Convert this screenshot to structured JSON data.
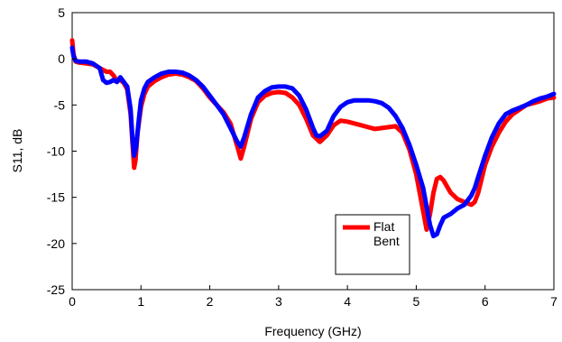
{
  "chart_data": {
    "type": "line",
    "xlabel": "Frequency (GHz)",
    "ylabel": "S11, dB",
    "xlim": [
      0,
      7
    ],
    "ylim": [
      -25,
      5
    ],
    "xticks": [
      "0",
      "1",
      "2",
      "3",
      "4",
      "5",
      "6",
      "7"
    ],
    "yticks": [
      "5",
      "0",
      "-5",
      "-10",
      "-15",
      "-20",
      "-25"
    ],
    "grid": false,
    "legend_position": "lower-right inside plot",
    "series": [
      {
        "name": "Flat",
        "color": "#ff0000",
        "points": [
          [
            0.0,
            2.0
          ],
          [
            0.02,
            0.5
          ],
          [
            0.05,
            -0.3
          ],
          [
            0.1,
            -0.4
          ],
          [
            0.2,
            -0.5
          ],
          [
            0.3,
            -0.6
          ],
          [
            0.4,
            -1.0
          ],
          [
            0.5,
            -1.4
          ],
          [
            0.55,
            -1.4
          ],
          [
            0.6,
            -1.8
          ],
          [
            0.65,
            -2.4
          ],
          [
            0.7,
            -2.3
          ],
          [
            0.75,
            -2.6
          ],
          [
            0.8,
            -3.3
          ],
          [
            0.85,
            -6.0
          ],
          [
            0.88,
            -9.5
          ],
          [
            0.9,
            -11.8
          ],
          [
            0.92,
            -11.0
          ],
          [
            0.95,
            -8.0
          ],
          [
            1.0,
            -5.2
          ],
          [
            1.05,
            -3.8
          ],
          [
            1.1,
            -3.0
          ],
          [
            1.2,
            -2.4
          ],
          [
            1.3,
            -2.0
          ],
          [
            1.4,
            -1.7
          ],
          [
            1.5,
            -1.6
          ],
          [
            1.6,
            -1.7
          ],
          [
            1.7,
            -2.0
          ],
          [
            1.8,
            -2.4
          ],
          [
            1.9,
            -3.2
          ],
          [
            2.0,
            -4.2
          ],
          [
            2.1,
            -5.0
          ],
          [
            2.2,
            -5.8
          ],
          [
            2.3,
            -7.0
          ],
          [
            2.4,
            -9.5
          ],
          [
            2.45,
            -10.8
          ],
          [
            2.5,
            -9.5
          ],
          [
            2.6,
            -6.5
          ],
          [
            2.7,
            -4.7
          ],
          [
            2.8,
            -4.0
          ],
          [
            2.9,
            -3.7
          ],
          [
            3.0,
            -3.6
          ],
          [
            3.1,
            -3.7
          ],
          [
            3.2,
            -4.2
          ],
          [
            3.3,
            -5.0
          ],
          [
            3.4,
            -6.5
          ],
          [
            3.5,
            -8.3
          ],
          [
            3.6,
            -9.0
          ],
          [
            3.7,
            -8.3
          ],
          [
            3.8,
            -7.2
          ],
          [
            3.9,
            -6.7
          ],
          [
            4.0,
            -6.8
          ],
          [
            4.1,
            -7.0
          ],
          [
            4.2,
            -7.2
          ],
          [
            4.3,
            -7.4
          ],
          [
            4.4,
            -7.6
          ],
          [
            4.5,
            -7.5
          ],
          [
            4.6,
            -7.4
          ],
          [
            4.7,
            -7.3
          ],
          [
            4.8,
            -8.0
          ],
          [
            4.9,
            -9.8
          ],
          [
            5.0,
            -12.5
          ],
          [
            5.1,
            -16.5
          ],
          [
            5.15,
            -18.5
          ],
          [
            5.2,
            -16.8
          ],
          [
            5.25,
            -14.5
          ],
          [
            5.3,
            -13.0
          ],
          [
            5.35,
            -12.8
          ],
          [
            5.4,
            -13.2
          ],
          [
            5.5,
            -14.5
          ],
          [
            5.6,
            -15.2
          ],
          [
            5.7,
            -15.5
          ],
          [
            5.8,
            -15.8
          ],
          [
            5.85,
            -15.5
          ],
          [
            5.9,
            -14.5
          ],
          [
            6.0,
            -11.5
          ],
          [
            6.1,
            -9.5
          ],
          [
            6.2,
            -8.0
          ],
          [
            6.3,
            -6.8
          ],
          [
            6.4,
            -6.0
          ],
          [
            6.5,
            -5.5
          ],
          [
            6.6,
            -5.0
          ],
          [
            6.7,
            -4.8
          ],
          [
            6.8,
            -4.6
          ],
          [
            6.9,
            -4.3
          ],
          [
            7.0,
            -4.2
          ]
        ]
      },
      {
        "name": "Bent",
        "color": "#0000ff",
        "points": [
          [
            0.0,
            1.2
          ],
          [
            0.02,
            0.3
          ],
          [
            0.05,
            -0.2
          ],
          [
            0.1,
            -0.3
          ],
          [
            0.2,
            -0.3
          ],
          [
            0.3,
            -0.5
          ],
          [
            0.4,
            -1.0
          ],
          [
            0.45,
            -2.3
          ],
          [
            0.5,
            -2.6
          ],
          [
            0.55,
            -2.5
          ],
          [
            0.6,
            -2.3
          ],
          [
            0.65,
            -2.5
          ],
          [
            0.7,
            -2.0
          ],
          [
            0.75,
            -2.5
          ],
          [
            0.8,
            -3.0
          ],
          [
            0.85,
            -5.5
          ],
          [
            0.88,
            -9.0
          ],
          [
            0.9,
            -10.5
          ],
          [
            0.93,
            -9.5
          ],
          [
            0.97,
            -6.5
          ],
          [
            1.0,
            -4.5
          ],
          [
            1.05,
            -3.2
          ],
          [
            1.1,
            -2.5
          ],
          [
            1.2,
            -2.0
          ],
          [
            1.3,
            -1.6
          ],
          [
            1.4,
            -1.4
          ],
          [
            1.5,
            -1.4
          ],
          [
            1.6,
            -1.5
          ],
          [
            1.7,
            -1.8
          ],
          [
            1.8,
            -2.3
          ],
          [
            1.9,
            -3.0
          ],
          [
            2.0,
            -4.0
          ],
          [
            2.1,
            -5.0
          ],
          [
            2.2,
            -6.0
          ],
          [
            2.3,
            -7.5
          ],
          [
            2.4,
            -9.0
          ],
          [
            2.45,
            -9.5
          ],
          [
            2.5,
            -8.5
          ],
          [
            2.6,
            -6.0
          ],
          [
            2.7,
            -4.2
          ],
          [
            2.8,
            -3.5
          ],
          [
            2.9,
            -3.1
          ],
          [
            3.0,
            -3.0
          ],
          [
            3.1,
            -3.0
          ],
          [
            3.2,
            -3.2
          ],
          [
            3.3,
            -4.0
          ],
          [
            3.4,
            -5.5
          ],
          [
            3.5,
            -7.5
          ],
          [
            3.55,
            -8.3
          ],
          [
            3.6,
            -8.4
          ],
          [
            3.7,
            -7.8
          ],
          [
            3.8,
            -6.2
          ],
          [
            3.9,
            -5.2
          ],
          [
            4.0,
            -4.7
          ],
          [
            4.1,
            -4.5
          ],
          [
            4.2,
            -4.5
          ],
          [
            4.3,
            -4.5
          ],
          [
            4.4,
            -4.6
          ],
          [
            4.5,
            -4.8
          ],
          [
            4.6,
            -5.3
          ],
          [
            4.7,
            -6.2
          ],
          [
            4.8,
            -7.5
          ],
          [
            4.9,
            -9.3
          ],
          [
            5.0,
            -11.5
          ],
          [
            5.1,
            -14.0
          ],
          [
            5.15,
            -16.0
          ],
          [
            5.2,
            -18.0
          ],
          [
            5.25,
            -19.2
          ],
          [
            5.3,
            -19.0
          ],
          [
            5.35,
            -18.0
          ],
          [
            5.4,
            -17.2
          ],
          [
            5.5,
            -16.8
          ],
          [
            5.6,
            -16.2
          ],
          [
            5.7,
            -15.8
          ],
          [
            5.8,
            -14.8
          ],
          [
            5.85,
            -14.0
          ],
          [
            5.9,
            -12.8
          ],
          [
            6.0,
            -10.5
          ],
          [
            6.1,
            -8.5
          ],
          [
            6.2,
            -7.0
          ],
          [
            6.3,
            -6.0
          ],
          [
            6.4,
            -5.6
          ],
          [
            6.5,
            -5.3
          ],
          [
            6.6,
            -5.0
          ],
          [
            6.7,
            -4.6
          ],
          [
            6.8,
            -4.3
          ],
          [
            6.9,
            -4.1
          ],
          [
            7.0,
            -3.8
          ]
        ]
      }
    ]
  }
}
